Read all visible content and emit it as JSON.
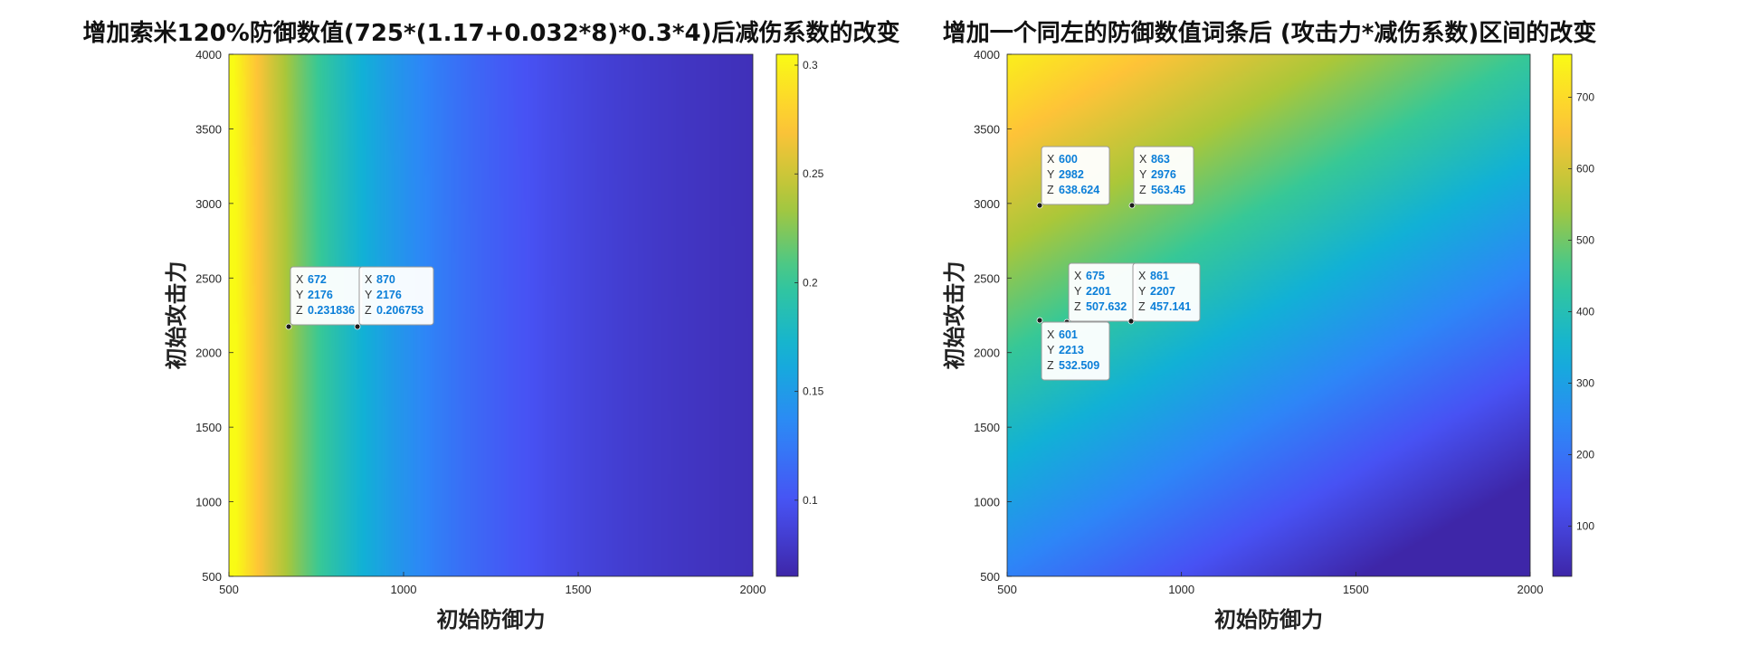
{
  "chart_data": [
    {
      "type": "heatmap",
      "title": "增加索米120%防御数值(725*(1.17+0.032*8)*0.3*4)后减伤系数的改变",
      "xlabel": "初始防御力",
      "ylabel": "初始攻击力",
      "xlim": [
        500,
        2000
      ],
      "ylim": [
        500,
        4000
      ],
      "x_ticks": [
        "500",
        "1000",
        "1500",
        "2000"
      ],
      "y_ticks": [
        "500",
        "1000",
        "1500",
        "2000",
        "2500",
        "3000",
        "3500",
        "4000"
      ],
      "colorbar": {
        "colormap": "parula",
        "range": [
          0.065,
          0.305
        ],
        "ticks": [
          "0.1",
          "0.15",
          "0.2",
          "0.25",
          "0.3"
        ],
        "tick_values": [
          0.1,
          0.15,
          0.2,
          0.25,
          0.3
        ]
      },
      "datatips": [
        {
          "x": "672",
          "y": "2176",
          "z": "0.231836"
        },
        {
          "x": "870",
          "y": "2176",
          "z": "0.206753"
        }
      ]
    },
    {
      "type": "heatmap",
      "title": "增加一个同左的防御数值词条后 (攻击力*减伤系数)区间的改变",
      "xlabel": "初始防御力",
      "ylabel": "初始攻击力",
      "xlim": [
        500,
        2000
      ],
      "ylim": [
        500,
        4000
      ],
      "x_ticks": [
        "500",
        "1000",
        "1500",
        "2000"
      ],
      "y_ticks": [
        "500",
        "1000",
        "1500",
        "2000",
        "2500",
        "3000",
        "3500",
        "4000"
      ],
      "colorbar": {
        "colormap": "parula",
        "range": [
          30,
          760
        ],
        "ticks": [
          "100",
          "200",
          "300",
          "400",
          "500",
          "600",
          "700"
        ],
        "tick_values": [
          100,
          200,
          300,
          400,
          500,
          600,
          700
        ]
      },
      "datatips": [
        {
          "x": "600",
          "y": "2982",
          "z": "638.624"
        },
        {
          "x": "863",
          "y": "2976",
          "z": "563.45"
        },
        {
          "x": "675",
          "y": "2201",
          "z": "507.632"
        },
        {
          "x": "861",
          "y": "2207",
          "z": "457.141"
        },
        {
          "x": "601",
          "y": "2213",
          "z": "532.509"
        }
      ]
    }
  ]
}
